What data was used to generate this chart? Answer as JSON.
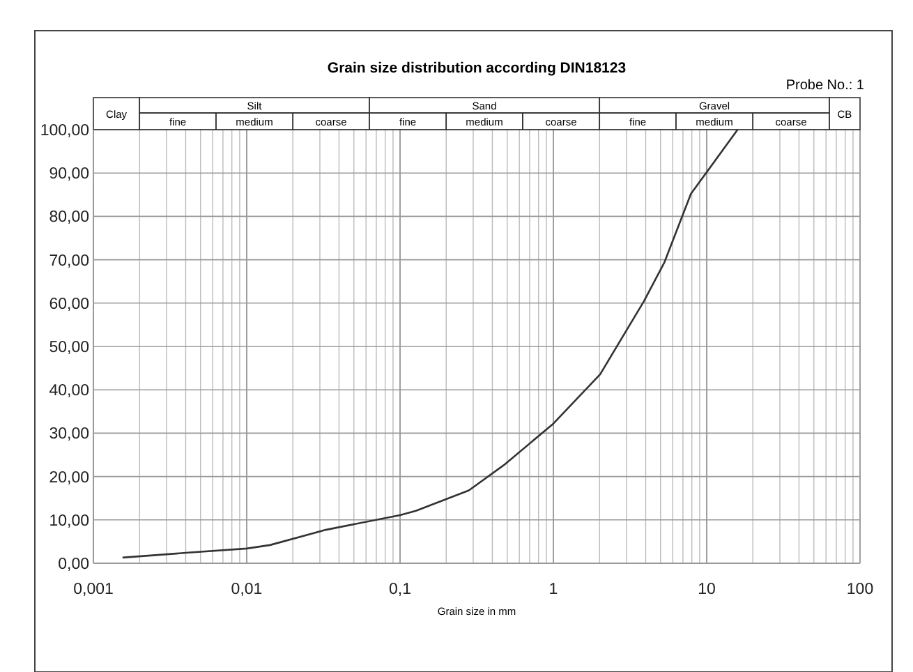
{
  "chart_data": {
    "type": "line",
    "title": "Grain size distribution according DIN18123",
    "subtitle": "Probe No.: 1",
    "xlabel": "Grain size in mm",
    "log": "x",
    "grid": true,
    "line_style": "solid",
    "xlim": [
      0.001,
      100
    ],
    "xticks": [
      {
        "value": 0.001,
        "label": "0,001"
      },
      {
        "value": 0.01,
        "label": "0,01"
      },
      {
        "value": 0.1,
        "label": "0,1"
      },
      {
        "value": 1,
        "label": "1"
      },
      {
        "value": 10,
        "label": "10"
      },
      {
        "value": 100,
        "label": "100"
      }
    ],
    "ylim": [
      0,
      100
    ],
    "yticks": [
      {
        "value": 0,
        "label": "0,00"
      },
      {
        "value": 10,
        "label": "10,00"
      },
      {
        "value": 20,
        "label": "20,00"
      },
      {
        "value": 30,
        "label": "30,00"
      },
      {
        "value": 40,
        "label": "40,00"
      },
      {
        "value": 50,
        "label": "50,00"
      },
      {
        "value": 60,
        "label": "60,00"
      },
      {
        "value": 70,
        "label": "70,00"
      },
      {
        "value": 80,
        "label": "80,00"
      },
      {
        "value": 90,
        "label": "90,00"
      },
      {
        "value": 100,
        "label": "100,00"
      }
    ],
    "series": [
      {
        "color": "#333333",
        "x": [
          0.00155,
          0.004,
          0.01,
          0.0142,
          0.0327,
          0.1,
          0.127,
          0.281,
          0.474,
          1,
          2.02,
          3.89,
          5.3,
          7.89,
          15.9
        ],
        "values": [
          1.3,
          2.4,
          3.4,
          4.2,
          7.7,
          11.1,
          12.1,
          16.8,
          22.6,
          32.2,
          43.6,
          60.4,
          69.4,
          85.2,
          100
        ]
      }
    ],
    "annotations": [
      "Clay",
      "Silt",
      "fine",
      "medium",
      "coarse",
      "Sand",
      "fine",
      "medium",
      "coarse",
      "Gravel",
      "fine",
      "medium",
      "coarse",
      "CB"
    ]
  }
}
